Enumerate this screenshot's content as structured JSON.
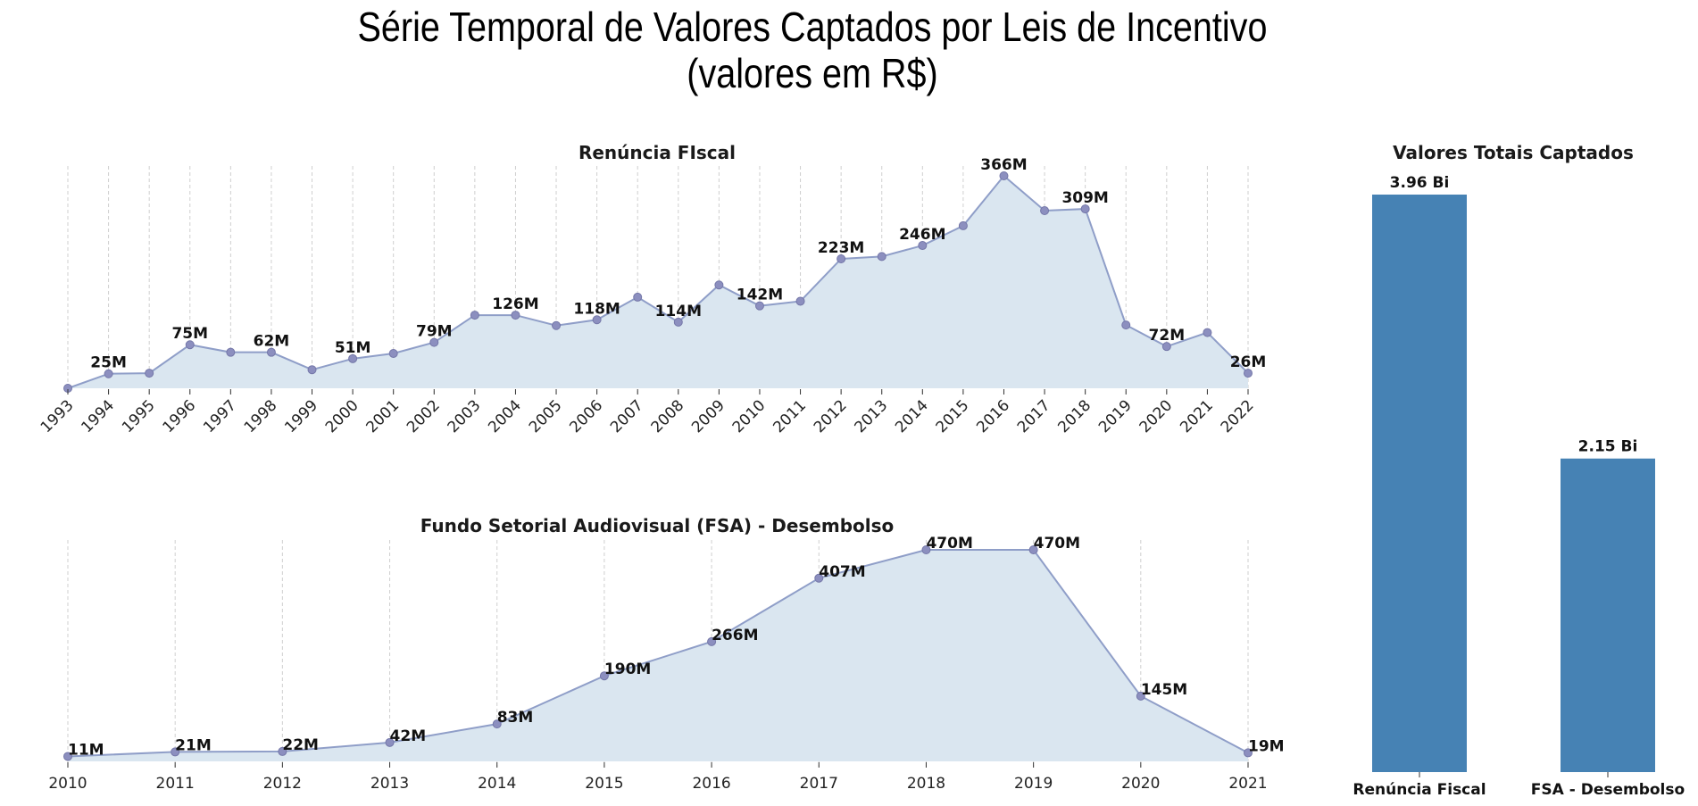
{
  "title_line1": "Série Temporal de Valores Captados por Leis de Incentivo",
  "title_line2": "(valores em R$)",
  "chart_data": [
    {
      "type": "area",
      "title": "Renúncia FIscal",
      "x": [
        1993,
        1994,
        1995,
        1996,
        1997,
        1998,
        1999,
        2000,
        2001,
        2002,
        2003,
        2004,
        2005,
        2006,
        2007,
        2008,
        2009,
        2010,
        2011,
        2012,
        2013,
        2014,
        2015,
        2016,
        2017,
        2018,
        2019,
        2020,
        2021,
        2022
      ],
      "values": [
        0,
        25,
        26,
        75,
        62,
        62,
        32,
        51,
        60,
        79,
        126,
        126,
        108,
        118,
        157,
        114,
        178,
        142,
        150,
        223,
        227,
        246,
        280,
        366,
        306,
        309,
        109,
        72,
        96,
        26
      ],
      "point_labels": {
        "1994": "25M",
        "1996": "75M",
        "1998": "62M",
        "2000": "51M",
        "2002": "79M",
        "2004": "126M",
        "2006": "118M",
        "2008": "114M",
        "2010": "142M",
        "2012": "223M",
        "2014": "246M",
        "2016": "366M",
        "2018": "309M",
        "2020": "72M",
        "2022": "26M"
      },
      "ylim": [
        0,
        366
      ],
      "grid": "x-dashed"
    },
    {
      "type": "area",
      "title": "Fundo Setorial Audiovisual (FSA) - Desembolso",
      "x": [
        2010,
        2011,
        2012,
        2013,
        2014,
        2015,
        2016,
        2017,
        2018,
        2019,
        2020,
        2021
      ],
      "values": [
        11,
        21,
        22,
        42,
        83,
        190,
        266,
        407,
        470,
        470,
        145,
        19
      ],
      "point_labels": {
        "2010": "11M",
        "2011": "21M",
        "2012": "22M",
        "2013": "42M",
        "2014": "83M",
        "2015": "190M",
        "2016": "266M",
        "2017": "407M",
        "2018": "470M",
        "2019": "470M",
        "2020": "145M",
        "2021": "19M"
      },
      "ylim": [
        0,
        470
      ],
      "grid": "x-dashed"
    },
    {
      "type": "bar",
      "title": "Valores Totais Captados",
      "categories": [
        "Renúncia Fiscal",
        "FSA - Desembolso"
      ],
      "values": [
        3.96,
        2.15
      ],
      "value_labels": [
        "3.96 Bi",
        "2.15 Bi"
      ],
      "color": "#4682b4"
    }
  ]
}
